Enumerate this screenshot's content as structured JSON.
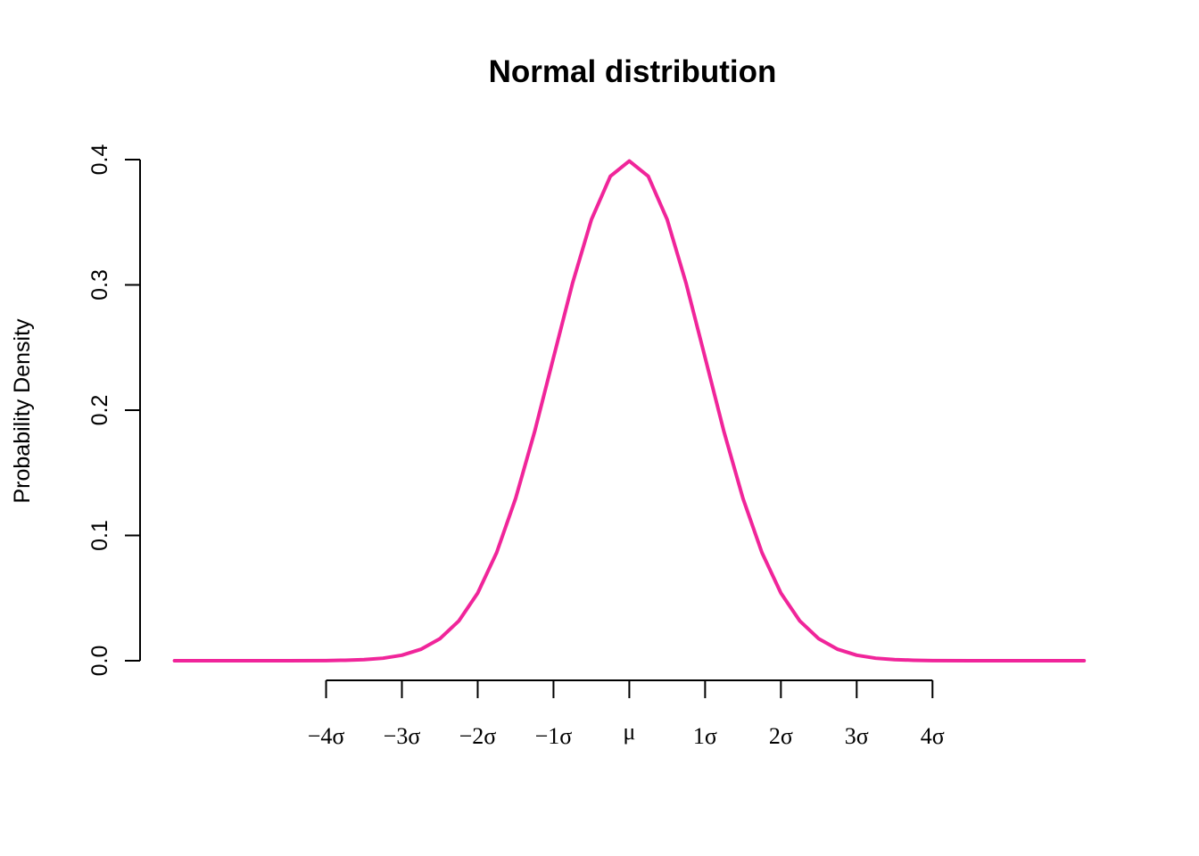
{
  "chart_data": {
    "type": "line",
    "title": "Normal distribution",
    "xlabel": "",
    "ylabel": "Probability Density",
    "xlim": [
      -5.96,
      6.08
    ],
    "ylim": [
      0,
      0.4
    ],
    "x_axis_range": [
      -4,
      4
    ],
    "yticks": [
      0,
      0.1,
      0.2,
      0.3,
      0.4
    ],
    "ytick_labels": [
      "0.0",
      "0.1",
      "0.2",
      "0.3",
      "0.4"
    ],
    "xticks": [
      -4,
      -3,
      -2,
      -1,
      0,
      1,
      2,
      3,
      4
    ],
    "xtick_labels": [
      "−4σ",
      "−3σ",
      "−2σ",
      "−1σ",
      "μ",
      "1σ",
      "2σ",
      "3σ",
      "4σ"
    ],
    "grid": false,
    "series": [
      {
        "color": "#f0259a",
        "x": [
          -6.0,
          -5.5,
          -5.0,
          -4.5,
          -4.0,
          -3.75,
          -3.5,
          -3.25,
          -3.0,
          -2.75,
          -2.5,
          -2.25,
          -2.0,
          -1.75,
          -1.5,
          -1.25,
          -1.0,
          -0.75,
          -0.5,
          -0.25,
          0.0,
          0.25,
          0.5,
          0.75,
          1.0,
          1.25,
          1.5,
          1.75,
          2.0,
          2.25,
          2.5,
          2.75,
          3.0,
          3.25,
          3.5,
          3.75,
          4.0,
          4.5,
          5.0,
          5.5,
          6.0
        ],
        "y": [
          0.0,
          0.0,
          0.0,
          0.0,
          0.0001,
          0.0004,
          0.0009,
          0.002,
          0.0044,
          0.0091,
          0.0175,
          0.0317,
          0.054,
          0.0863,
          0.1295,
          0.1826,
          0.242,
          0.3011,
          0.3521,
          0.3867,
          0.3989,
          0.3867,
          0.3521,
          0.3011,
          0.242,
          0.1826,
          0.1295,
          0.0863,
          0.054,
          0.0317,
          0.0175,
          0.0091,
          0.0044,
          0.002,
          0.0009,
          0.0004,
          0.0001,
          0.0,
          0.0,
          0.0,
          0.0
        ]
      }
    ]
  }
}
